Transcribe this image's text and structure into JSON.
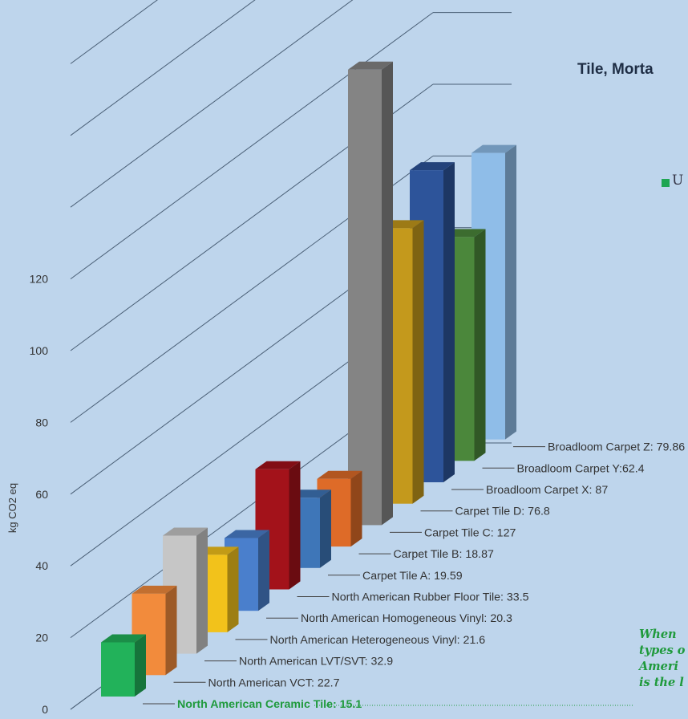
{
  "chart_data": {
    "type": "bar",
    "title": "Tile, Morta",
    "ylabel": "kg CO2 eq",
    "ylim": [
      0,
      120
    ],
    "yticks": [
      0,
      20,
      40,
      60,
      80,
      100,
      120
    ],
    "legend": [
      {
        "name": "U",
        "color": "#1fa653"
      }
    ],
    "series": [
      {
        "label": "North American Ceramic Tile:  15.1",
        "value": 15.1,
        "color": "#22b25a",
        "highlight": true
      },
      {
        "label": "North American VCT:  22.7",
        "value": 22.7,
        "color": "#f28b3c"
      },
      {
        "label": "North American LVT/SVT:  32.9",
        "value": 32.9,
        "color": "#c6c6c6"
      },
      {
        "label": "North American Heterogeneous Vinyl:  21.6",
        "value": 21.6,
        "color": "#f2c21b"
      },
      {
        "label": "North American Homogeneous Vinyl: 20.3",
        "value": 20.3,
        "color": "#4a7fcc"
      },
      {
        "label": "North American Rubber Floor Tile: 33.5",
        "value": 33.5,
        "color": "#a3121a"
      },
      {
        "label": "Carpet Tile A: 19.59",
        "value": 19.59,
        "color": "#3e76b8"
      },
      {
        "label": "Carpet Tile B: 18.87",
        "value": 18.87,
        "color": "#de6b28"
      },
      {
        "label": "Carpet Tile C: 127",
        "value": 127,
        "color": "#848484"
      },
      {
        "label": "Carpet Tile D:  76.8",
        "value": 76.8,
        "color": "#c4991c"
      },
      {
        "label": "Broadloom Carpet  X:  87",
        "value": 87,
        "color": "#2d549a"
      },
      {
        "label": "Broadloom Carpet  Y:62.4",
        "value": 62.4,
        "color": "#4b873b"
      },
      {
        "label": "Broadloom Carpet  Z:  79.86",
        "value": 79.86,
        "color": "#8fbde8"
      }
    ]
  },
  "note": {
    "lines": [
      "When",
      "types o",
      "Ameri",
      "is the l"
    ]
  }
}
